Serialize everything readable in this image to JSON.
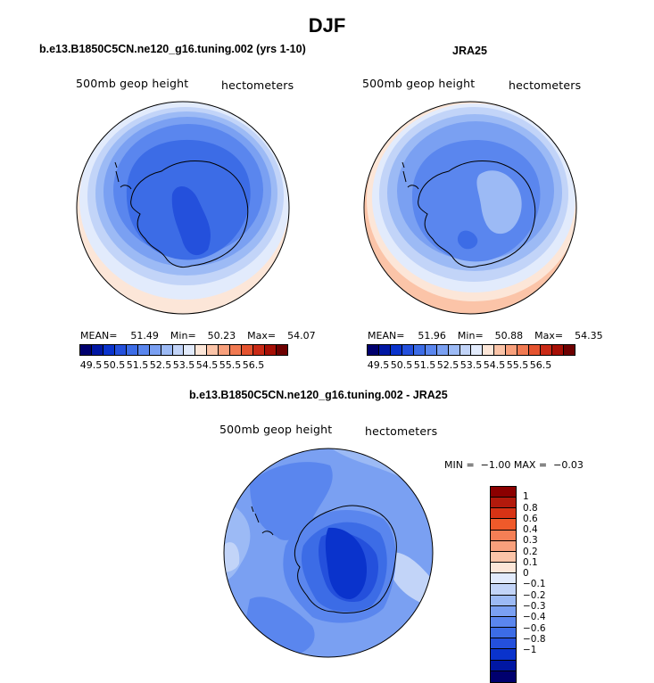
{
  "title": "DJF",
  "panels": {
    "model": {
      "title": "b.e13.B1850C5CN.ne120_g16.tuning.002 (yrs 1-10)",
      "left_label": "500mb geop height",
      "right_label": "hectometers",
      "stats": {
        "mean_label": "MEAN=",
        "mean": "51.49",
        "min_label": "Min=",
        "min": "50.23",
        "max_label": "Max=",
        "max": "54.07"
      }
    },
    "obs": {
      "title": "JRA25",
      "left_label": "500mb geop height",
      "right_label": "hectometers",
      "stats": {
        "mean_label": "MEAN=",
        "mean": "51.96",
        "min_label": "Min=",
        "min": "50.88",
        "max_label": "Max=",
        "max": "54.35"
      }
    },
    "diff": {
      "title": "b.e13.B1850C5CN.ne120_g16.tuning.002 - JRA25",
      "left_label": "500mb geop height",
      "right_label": "hectometers",
      "minmax": "MIN =  −1.00 MAX =  −0.03"
    }
  },
  "colorbar_abs": {
    "colors": [
      "#00006e",
      "#0017a3",
      "#0a33cc",
      "#2450dc",
      "#3c6ce6",
      "#5a86ee",
      "#7aa0f2",
      "#9cbaf5",
      "#c2d4f8",
      "#e2ebfc",
      "#fce6d8",
      "#fbc4a8",
      "#f8a07c",
      "#f17a52",
      "#e4532f",
      "#c92a16",
      "#a60f05",
      "#6e0000"
    ],
    "labels": [
      "49.5",
      "50.5",
      "51.5",
      "52.5",
      "53.5",
      "54.5",
      "55.5",
      "56.5"
    ]
  },
  "colorbar_diff": {
    "colors": [
      "#8b0000",
      "#b21a0c",
      "#d73315",
      "#ef5a2a",
      "#f57f55",
      "#f8a07c",
      "#fbc4a8",
      "#fce6d8",
      "#e2ebfc",
      "#c2d4f8",
      "#9cbaf5",
      "#7aa0f2",
      "#5a86ee",
      "#3c6ce6",
      "#2450dc",
      "#0a33cc",
      "#0017a3",
      "#00006e"
    ],
    "labels": [
      "1",
      "0.8",
      "0.6",
      "0.4",
      "0.3",
      "0.2",
      "0.1",
      "0",
      "−0.1",
      "−0.2",
      "−0.3",
      "−0.4",
      "−0.6",
      "−0.8",
      "−1"
    ]
  },
  "chart_data": [
    {
      "type": "heatmap",
      "title": "b.e13.B1850C5CN.ne120_g16.tuning.002 (yrs 1-10)",
      "variable": "500mb geop height",
      "units": "hectometers",
      "projection": "south polar stereographic",
      "contour_levels": [
        49.5,
        50.0,
        50.5,
        51.0,
        51.5,
        52.0,
        52.5,
        53.0,
        53.5,
        54.0,
        54.5,
        55.0,
        55.5,
        56.0,
        56.5
      ],
      "mean": 51.49,
      "min": 50.23,
      "max": 54.07
    },
    {
      "type": "heatmap",
      "title": "JRA25",
      "variable": "500mb geop height",
      "units": "hectometers",
      "projection": "south polar stereographic",
      "contour_levels": [
        49.5,
        50.0,
        50.5,
        51.0,
        51.5,
        52.0,
        52.5,
        53.0,
        53.5,
        54.0,
        54.5,
        55.0,
        55.5,
        56.0,
        56.5
      ],
      "mean": 51.96,
      "min": 50.88,
      "max": 54.35
    },
    {
      "type": "heatmap",
      "title": "b.e13.B1850C5CN.ne120_g16.tuning.002 - JRA25",
      "variable": "500mb geop height",
      "units": "hectometers",
      "projection": "south polar stereographic",
      "contour_levels": [
        -1,
        -0.8,
        -0.6,
        -0.4,
        -0.3,
        -0.2,
        -0.1,
        0,
        0.1,
        0.2,
        0.3,
        0.4,
        0.6,
        0.8,
        1
      ],
      "min": -1.0,
      "max": -0.03
    }
  ]
}
